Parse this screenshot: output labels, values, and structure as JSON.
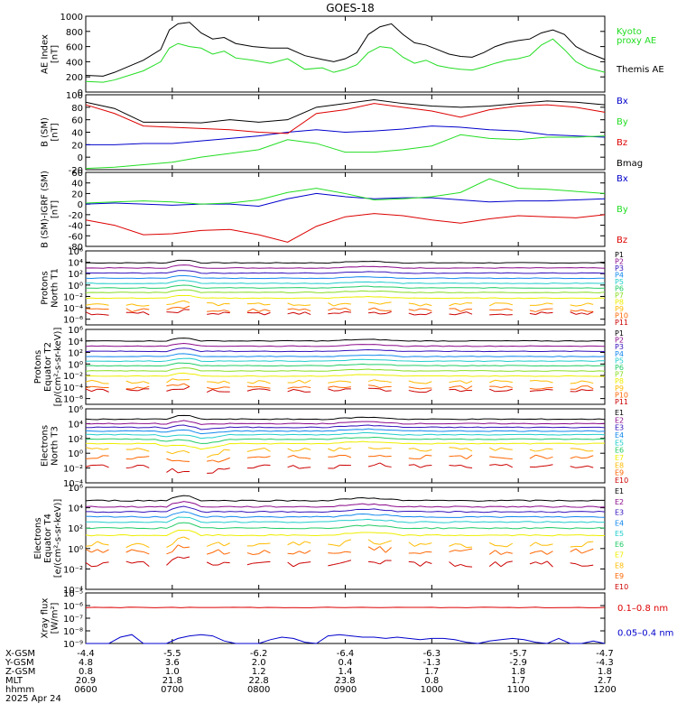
{
  "title": "GOES-18",
  "colors": {
    "black": "#000000",
    "blue": "#0000cc",
    "green": "#22dd22",
    "red": "#dd0000",
    "p_palette": [
      "#000000",
      "#8b0a8b",
      "#3311bb",
      "#1188ee",
      "#22cccc",
      "#22cc66",
      "#88dd22",
      "#eeee00",
      "#ffbb00",
      "#ff6600",
      "#cc0000"
    ],
    "e_palette": [
      "#000000",
      "#8b0a8b",
      "#3311bb",
      "#1188ee",
      "#22cccc",
      "#22cc66",
      "#eeee00",
      "#ffbb00",
      "#ff6600",
      "#cc0000"
    ]
  },
  "chart_data": [
    {
      "type": "line",
      "panel": "ae",
      "ylabel_lines": [
        "AE Index",
        "[nT]"
      ],
      "ylim": [
        0,
        1000
      ],
      "yticks": [
        {
          "v": 0,
          "l": "0"
        },
        {
          "v": 200,
          "l": "200"
        },
        {
          "v": 400,
          "l": "400"
        },
        {
          "v": 600,
          "l": "600"
        },
        {
          "v": 800,
          "l": "800"
        },
        {
          "v": 1000,
          "l": "1000"
        }
      ],
      "log": false,
      "legend": [
        {
          "text": "Kyoto",
          "color": "green"
        },
        {
          "text": "proxy AE",
          "color": "green"
        },
        {
          "text": "Themis AE",
          "color": "black"
        }
      ],
      "x": [
        0,
        6,
        10,
        20,
        26,
        29,
        32,
        36,
        40,
        44,
        48,
        52,
        58,
        64,
        70,
        76,
        82,
        86,
        90,
        94,
        98,
        102,
        106,
        110,
        114,
        118,
        122,
        126,
        130,
        134,
        138,
        142,
        146,
        150,
        154,
        158,
        162,
        166,
        170,
        174,
        180
      ],
      "series": [
        {
          "name": "Themis AE",
          "color": "black",
          "values": [
            220,
            210,
            260,
            420,
            560,
            820,
            900,
            920,
            780,
            700,
            720,
            640,
            600,
            580,
            580,
            480,
            430,
            400,
            440,
            520,
            760,
            860,
            900,
            760,
            650,
            620,
            560,
            500,
            470,
            460,
            520,
            600,
            650,
            680,
            700,
            780,
            820,
            760,
            600,
            520,
            430
          ]
        },
        {
          "name": "Kyoto proxy AE",
          "color": "green",
          "values": [
            140,
            130,
            160,
            280,
            400,
            580,
            640,
            600,
            580,
            500,
            540,
            450,
            420,
            380,
            440,
            300,
            320,
            260,
            300,
            360,
            520,
            600,
            580,
            460,
            380,
            420,
            350,
            320,
            300,
            290,
            330,
            380,
            420,
            440,
            480,
            620,
            700,
            560,
            400,
            320,
            260
          ]
        }
      ]
    },
    {
      "type": "line",
      "panel": "bsm",
      "ylabel_lines": [
        "B (SM)",
        "[nT]"
      ],
      "ylim": [
        -20,
        100
      ],
      "yticks": [
        {
          "v": -20,
          "l": "-20"
        },
        {
          "v": 0,
          "l": "0"
        },
        {
          "v": 20,
          "l": "20"
        },
        {
          "v": 40,
          "l": "40"
        },
        {
          "v": 60,
          "l": "60"
        },
        {
          "v": 80,
          "l": "80"
        },
        {
          "v": 100,
          "l": "100"
        }
      ],
      "log": false,
      "legend": [
        {
          "text": "Bx",
          "color": "blue"
        },
        {
          "text": "By",
          "color": "green"
        },
        {
          "text": "Bz",
          "color": "red"
        },
        {
          "text": "Bmag",
          "color": "black"
        }
      ],
      "x": [
        0,
        10,
        20,
        30,
        40,
        50,
        60,
        70,
        80,
        90,
        100,
        110,
        120,
        130,
        140,
        150,
        160,
        170,
        180
      ],
      "series": [
        {
          "name": "Bx",
          "color": "blue",
          "values": [
            20,
            20,
            22,
            22,
            26,
            30,
            34,
            40,
            44,
            40,
            42,
            45,
            50,
            48,
            44,
            42,
            36,
            34,
            32
          ]
        },
        {
          "name": "By",
          "color": "green",
          "values": [
            -18,
            -16,
            -12,
            -8,
            0,
            6,
            12,
            28,
            22,
            8,
            8,
            12,
            18,
            36,
            30,
            28,
            32,
            32,
            34
          ]
        },
        {
          "name": "Bz",
          "color": "red",
          "values": [
            84,
            70,
            50,
            48,
            46,
            44,
            40,
            38,
            70,
            76,
            86,
            80,
            74,
            64,
            76,
            82,
            84,
            80,
            72
          ]
        },
        {
          "name": "Bmag",
          "color": "black",
          "values": [
            88,
            78,
            56,
            56,
            55,
            60,
            56,
            60,
            80,
            86,
            92,
            86,
            82,
            80,
            82,
            86,
            90,
            88,
            84
          ]
        }
      ]
    },
    {
      "type": "line",
      "panel": "bigrf",
      "ylabel_lines": [
        "B (SM)-IGRF (SM)",
        "[nT]"
      ],
      "ylim": [
        -80,
        60
      ],
      "yticks": [
        {
          "v": -80,
          "l": "-80"
        },
        {
          "v": -60,
          "l": "-60"
        },
        {
          "v": -40,
          "l": "-40"
        },
        {
          "v": -20,
          "l": "-20"
        },
        {
          "v": 0,
          "l": "0"
        },
        {
          "v": 20,
          "l": "20"
        },
        {
          "v": 40,
          "l": "40"
        },
        {
          "v": 60,
          "l": "60"
        }
      ],
      "log": false,
      "legend": [
        {
          "text": "Bx",
          "color": "blue"
        },
        {
          "text": "By",
          "color": "green"
        },
        {
          "text": "Bz",
          "color": "red"
        }
      ],
      "x": [
        0,
        10,
        20,
        30,
        40,
        50,
        60,
        70,
        80,
        90,
        100,
        110,
        120,
        130,
        140,
        150,
        160,
        170,
        180
      ],
      "series": [
        {
          "name": "Bx",
          "color": "blue",
          "values": [
            0,
            2,
            0,
            -2,
            0,
            0,
            -4,
            10,
            20,
            14,
            10,
            12,
            12,
            8,
            4,
            6,
            6,
            8,
            10
          ]
        },
        {
          "name": "By",
          "color": "green",
          "values": [
            2,
            4,
            6,
            4,
            0,
            2,
            8,
            22,
            30,
            20,
            8,
            10,
            14,
            22,
            48,
            30,
            28,
            24,
            20
          ]
        },
        {
          "name": "Bz",
          "color": "red",
          "values": [
            -30,
            -40,
            -58,
            -56,
            -50,
            -48,
            -58,
            -72,
            -42,
            -24,
            -18,
            -22,
            -30,
            -36,
            -28,
            -22,
            -24,
            -26,
            -20
          ]
        }
      ]
    },
    {
      "type": "line",
      "panel": "pn",
      "ylabel_lines": [
        "Protons",
        "North T1"
      ],
      "log": true,
      "ylim": [
        -7,
        6
      ],
      "yticks": [
        {
          "v": 6,
          "l": "10⁶"
        },
        {
          "v": 4,
          "l": "10⁴"
        },
        {
          "v": 2,
          "l": "10²"
        },
        {
          "v": 0,
          "l": "10⁰"
        },
        {
          "v": -2,
          "l": "10⁻²"
        },
        {
          "v": -4,
          "l": "10⁻⁴"
        },
        {
          "v": -6,
          "l": "10⁻⁶"
        }
      ],
      "legend": [
        {
          "text": "P1"
        },
        {
          "text": "P2"
        },
        {
          "text": "P3"
        },
        {
          "text": "P4"
        },
        {
          "text": "P5"
        },
        {
          "text": "P6"
        },
        {
          "text": "P7"
        },
        {
          "text": "P8"
        },
        {
          "text": "P9"
        },
        {
          "text": "P10"
        },
        {
          "text": "P11"
        }
      ],
      "channel_levels": [
        3.9,
        3.0,
        2.1,
        1.2,
        0.3,
        -0.5,
        -1.3,
        -2.3,
        -3.4,
        -4.4,
        -5.0
      ]
    },
    {
      "type": "line",
      "panel": "pe",
      "ylabel_lines": [
        "Protons",
        "Equator T2",
        "[p/(cm²-s-sr-keV)]"
      ],
      "log": true,
      "ylim": [
        -7,
        6
      ],
      "yticks": [
        {
          "v": 6,
          "l": "10⁶"
        },
        {
          "v": 4,
          "l": "10⁴"
        },
        {
          "v": 2,
          "l": "10²"
        },
        {
          "v": 0,
          "l": "10⁰"
        },
        {
          "v": -2,
          "l": "10⁻²"
        },
        {
          "v": -4,
          "l": "10⁻⁴"
        },
        {
          "v": -6,
          "l": "10⁻⁶"
        }
      ],
      "legend": [
        {
          "text": "P1"
        },
        {
          "text": "P2"
        },
        {
          "text": "P3"
        },
        {
          "text": "P4"
        },
        {
          "text": "P5"
        },
        {
          "text": "P6"
        },
        {
          "text": "P7"
        },
        {
          "text": "P8"
        },
        {
          "text": "P9"
        },
        {
          "text": "P10"
        },
        {
          "text": "P11"
        }
      ],
      "channel_levels": [
        4.0,
        3.1,
        2.2,
        1.3,
        0.5,
        -0.3,
        -1.2,
        -2.1,
        -3.1,
        -4.1,
        -4.6
      ]
    },
    {
      "type": "line",
      "panel": "en",
      "ylabel_lines": [
        "Electrons",
        "North T3"
      ],
      "log": true,
      "ylim": [
        -4,
        6
      ],
      "yticks": [
        {
          "v": 6,
          "l": "10⁶"
        },
        {
          "v": 4,
          "l": "10⁴"
        },
        {
          "v": 2,
          "l": "10²"
        },
        {
          "v": 0,
          "l": "10⁰"
        },
        {
          "v": -2,
          "l": "10⁻²"
        },
        {
          "v": -4,
          "l": "10⁻⁴"
        }
      ],
      "legend": [
        {
          "text": "E1"
        },
        {
          "text": "E2"
        },
        {
          "text": "E3"
        },
        {
          "text": "E4"
        },
        {
          "text": "E5"
        },
        {
          "text": "E6"
        },
        {
          "text": "E7"
        },
        {
          "text": "E8"
        },
        {
          "text": "E9"
        },
        {
          "text": "E10"
        }
      ],
      "channel_levels": [
        4.6,
        4.0,
        3.5,
        3.0,
        2.5,
        1.9,
        1.3,
        0.5,
        -0.5,
        -1.8
      ]
    },
    {
      "type": "line",
      "panel": "ee",
      "ylabel_lines": [
        "Electrons",
        "Equator T4",
        "[e/(cm²-s-sr-keV)]"
      ],
      "log": true,
      "ylim": [
        -4,
        6
      ],
      "yticks": [
        {
          "v": 6,
          "l": "10⁶"
        },
        {
          "v": 4,
          "l": "10⁴"
        },
        {
          "v": 2,
          "l": "10²"
        },
        {
          "v": 0,
          "l": "10⁰"
        },
        {
          "v": -2,
          "l": "10⁻²"
        },
        {
          "v": -4,
          "l": "10⁻⁴"
        }
      ],
      "legend": [
        {
          "text": "E1"
        },
        {
          "text": "E2"
        },
        {
          "text": "E3"
        },
        {
          "text": "E4"
        },
        {
          "text": "E5"
        },
        {
          "text": "E6"
        },
        {
          "text": "E7"
        },
        {
          "text": "E8"
        },
        {
          "text": "E9"
        },
        {
          "text": "E10"
        }
      ],
      "channel_levels": [
        4.7,
        4.1,
        3.6,
        3.1,
        2.6,
        2.0,
        1.3,
        0.4,
        -0.3,
        -1.5
      ]
    },
    {
      "type": "line",
      "panel": "xray",
      "ylabel_lines": [
        "Xray flux",
        "[W/m²]"
      ],
      "log": true,
      "ylim": [
        -9,
        -5
      ],
      "yticks": [
        {
          "v": -5,
          "l": "10⁻⁵"
        },
        {
          "v": -6,
          "l": "10⁻⁶"
        },
        {
          "v": -7,
          "l": "10⁻⁷"
        },
        {
          "v": -8,
          "l": "10⁻⁸"
        },
        {
          "v": -9,
          "l": "10⁻⁹"
        }
      ],
      "legend": [
        {
          "text": "0.1–0.8 nm",
          "color": "red"
        },
        {
          "text": "0.05–0.4 nm",
          "color": "blue"
        }
      ],
      "series": [
        {
          "name": "0.1–0.8 nm",
          "color": "red",
          "level": -6.15
        },
        {
          "name": "0.05–0.4 nm",
          "color": "blue",
          "x": [
            0,
            8,
            12,
            16,
            20,
            24,
            28,
            32,
            36,
            40,
            44,
            48,
            52,
            56,
            60,
            64,
            68,
            72,
            76,
            80,
            84,
            88,
            92,
            96,
            100,
            104,
            108,
            112,
            116,
            120,
            124,
            128,
            132,
            136,
            140,
            144,
            148,
            152,
            156,
            160,
            164,
            168,
            172,
            176,
            180
          ],
          "values": [
            -9,
            -9,
            -8.5,
            -8.3,
            -9,
            -9,
            -9,
            -8.6,
            -8.4,
            -8.3,
            -8.4,
            -8.8,
            -9,
            -9,
            -9,
            -8.7,
            -8.5,
            -8.6,
            -8.9,
            -9,
            -8.4,
            -8.3,
            -8.4,
            -8.5,
            -8.5,
            -8.6,
            -8.5,
            -8.6,
            -8.7,
            -8.6,
            -8.6,
            -8.7,
            -8.9,
            -9,
            -8.8,
            -8.7,
            -8.6,
            -8.7,
            -8.9,
            -9,
            -8.6,
            -9,
            -9,
            -8.8,
            -9
          ]
        }
      ]
    }
  ],
  "xaxis": {
    "row_labels": [
      "X-GSM",
      "Y-GSM",
      "Z-GSM",
      "MLT",
      "hhmm",
      "2025 Apr 24"
    ],
    "columns": [
      [
        "-4.4",
        "4.8",
        "0.8",
        "20.9",
        "0600"
      ],
      [
        "-5.5",
        "3.6",
        "1.0",
        "21.8",
        "0700"
      ],
      [
        "-6.2",
        "2.0",
        "1.2",
        "22.8",
        "0800"
      ],
      [
        "-6.4",
        "0.4",
        "1.4",
        "23.8",
        "0900"
      ],
      [
        "-6.3",
        "-1.3",
        "1.7",
        "0.8",
        "1000"
      ],
      [
        "-5.7",
        "-2.9",
        "1.8",
        "1.7",
        "1100"
      ],
      [
        "-4.7",
        "-4.3",
        "1.8",
        "2.7",
        "1200"
      ]
    ]
  }
}
